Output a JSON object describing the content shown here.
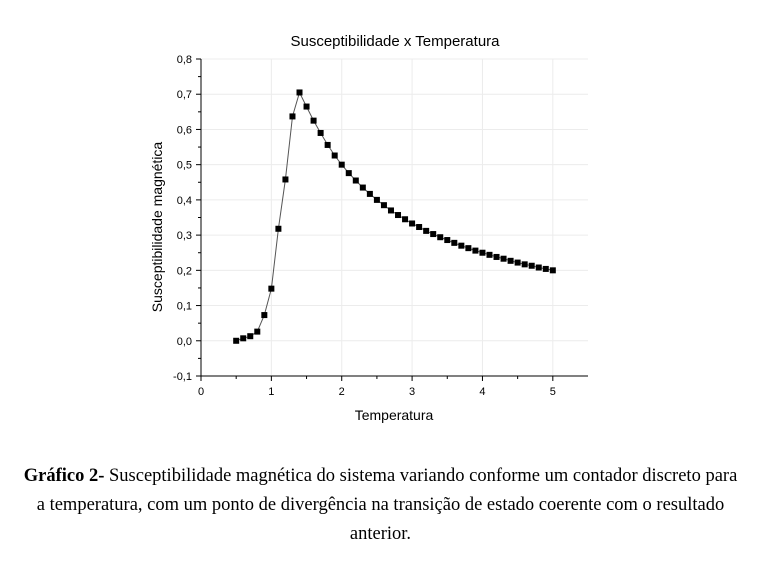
{
  "chart_data": {
    "type": "scatter",
    "title": "Susceptibilidade x Temperatura",
    "xlabel": "Temperatura",
    "ylabel": "Susceptibilidade magnética",
    "xlim": [
      0,
      5.5
    ],
    "ylim": [
      -0.1,
      0.8
    ],
    "xticks": [
      0,
      1,
      2,
      3,
      4,
      5
    ],
    "xtick_labels": [
      "0",
      "1",
      "2",
      "3",
      "4",
      "5"
    ],
    "yticks": [
      -0.1,
      0.0,
      0.1,
      0.2,
      0.3,
      0.4,
      0.5,
      0.6,
      0.7,
      0.8
    ],
    "ytick_labels": [
      "-0,1",
      "0,0",
      "0,1",
      "0,2",
      "0,3",
      "0,4",
      "0,5",
      "0,6",
      "0,7",
      "0,8"
    ],
    "grid": true,
    "marker": "square",
    "connected": true,
    "series": [
      {
        "x": [
          0.5,
          0.6,
          0.7,
          0.8,
          0.9,
          1.0,
          1.1,
          1.2,
          1.3,
          1.4,
          1.5,
          1.6,
          1.7,
          1.8,
          1.9,
          2.0,
          2.1,
          2.2,
          2.3,
          2.4,
          2.5,
          2.6,
          2.7,
          2.8,
          2.9,
          3.0,
          3.1,
          3.2,
          3.3,
          3.4,
          3.5,
          3.6,
          3.7,
          3.8,
          3.9,
          4.0,
          4.1,
          4.2,
          4.3,
          4.4,
          4.5,
          4.6,
          4.7,
          4.8,
          4.9,
          5.0
        ],
        "y": [
          0.0,
          0.007,
          0.013,
          0.026,
          0.073,
          0.148,
          0.318,
          0.458,
          0.637,
          0.705,
          0.665,
          0.625,
          0.59,
          0.556,
          0.526,
          0.5,
          0.476,
          0.455,
          0.435,
          0.417,
          0.4,
          0.385,
          0.37,
          0.357,
          0.345,
          0.333,
          0.323,
          0.312,
          0.303,
          0.294,
          0.286,
          0.278,
          0.27,
          0.263,
          0.256,
          0.25,
          0.244,
          0.238,
          0.233,
          0.227,
          0.222,
          0.217,
          0.213,
          0.208,
          0.204,
          0.2
        ]
      }
    ]
  },
  "caption": {
    "label": "Gráfico 2-",
    "text": " Susceptibilidade magnética do sistema variando conforme um contador discreto para a temperatura, com um ponto de divergência na transição de estado coerente com o resultado anterior."
  }
}
